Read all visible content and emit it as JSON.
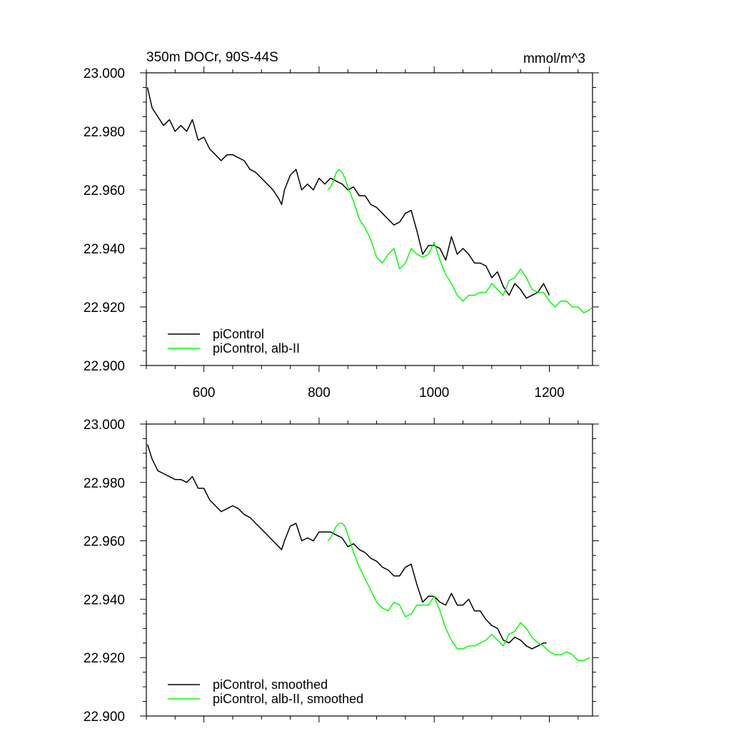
{
  "figure": {
    "title": "350m DOCr, 90S-44S",
    "units": "mmol/m^3"
  },
  "chart_data": [
    {
      "type": "line",
      "title": "350m DOCr, 90S-44S",
      "units": "mmol/m^3",
      "xlim": [
        500,
        1275
      ],
      "ylim": [
        22.9,
        23.0
      ],
      "x_ticks": [
        600,
        800,
        1000,
        1200
      ],
      "x_tick_labels": [
        "600",
        "800",
        "1000",
        "1200"
      ],
      "y_ticks": [
        22.9,
        22.92,
        22.94,
        22.96,
        22.98,
        23.0
      ],
      "y_tick_labels": [
        "22.900",
        "22.920",
        "22.940",
        "22.960",
        "22.980",
        "23.000"
      ],
      "legend_position": "bottom-left",
      "series": [
        {
          "name": "piControl",
          "color": "#000000",
          "x": [
            502,
            510,
            520,
            530,
            540,
            550,
            560,
            570,
            580,
            590,
            600,
            610,
            620,
            630,
            640,
            650,
            660,
            670,
            680,
            690,
            700,
            710,
            720,
            730,
            735,
            740,
            750,
            760,
            770,
            780,
            790,
            800,
            810,
            820,
            830,
            840,
            850,
            860,
            870,
            880,
            890,
            900,
            910,
            920,
            930,
            940,
            950,
            960,
            970,
            980,
            990,
            1000,
            1010,
            1020,
            1030,
            1040,
            1050,
            1060,
            1070,
            1080,
            1090,
            1100,
            1110,
            1120,
            1130,
            1140,
            1150,
            1160,
            1170,
            1180,
            1190,
            1200
          ],
          "y": [
            22.995,
            22.988,
            22.985,
            22.982,
            22.984,
            22.98,
            22.982,
            22.98,
            22.984,
            22.977,
            22.978,
            22.974,
            22.972,
            22.97,
            22.972,
            22.972,
            22.971,
            22.97,
            22.967,
            22.966,
            22.964,
            22.962,
            22.96,
            22.957,
            22.955,
            22.96,
            22.965,
            22.967,
            22.96,
            22.962,
            22.96,
            22.964,
            22.962,
            22.964,
            22.963,
            22.962,
            22.96,
            22.961,
            22.958,
            22.958,
            22.955,
            22.954,
            22.952,
            22.95,
            22.948,
            22.949,
            22.952,
            22.953,
            22.946,
            22.938,
            22.941,
            22.941,
            22.94,
            22.936,
            22.944,
            22.938,
            22.94,
            22.938,
            22.935,
            22.935,
            22.934,
            22.93,
            22.932,
            22.927,
            22.924,
            22.928,
            22.926,
            22.923,
            22.924,
            22.925,
            22.928,
            22.924
          ]
        },
        {
          "name": "piControl, alb-II",
          "color": "#00ff00",
          "x": [
            815,
            820,
            825,
            830,
            835,
            840,
            845,
            850,
            860,
            870,
            880,
            890,
            900,
            910,
            920,
            930,
            940,
            950,
            960,
            970,
            980,
            990,
            1000,
            1010,
            1020,
            1030,
            1040,
            1050,
            1060,
            1070,
            1080,
            1090,
            1100,
            1110,
            1120,
            1130,
            1140,
            1150,
            1160,
            1170,
            1180,
            1190,
            1200,
            1210,
            1220,
            1230,
            1240,
            1250,
            1260,
            1270,
            1275
          ],
          "y": [
            22.96,
            22.961,
            22.963,
            22.966,
            22.967,
            22.966,
            22.964,
            22.961,
            22.956,
            22.95,
            22.947,
            22.943,
            22.937,
            22.935,
            22.938,
            22.94,
            22.933,
            22.935,
            22.94,
            22.938,
            22.937,
            22.938,
            22.942,
            22.936,
            22.931,
            22.928,
            22.924,
            22.922,
            22.924,
            22.924,
            22.925,
            22.925,
            22.928,
            22.926,
            22.924,
            22.929,
            22.93,
            22.933,
            22.93,
            22.926,
            22.925,
            22.925,
            22.922,
            22.92,
            22.922,
            22.922,
            22.92,
            22.92,
            22.918,
            22.919,
            22.92
          ]
        }
      ]
    },
    {
      "type": "line",
      "title": "",
      "xlim": [
        500,
        1275
      ],
      "ylim": [
        22.9,
        23.0
      ],
      "x_ticks": [
        600,
        800,
        1000,
        1200
      ],
      "y_ticks": [
        22.9,
        22.92,
        22.94,
        22.96,
        22.98,
        23.0
      ],
      "y_tick_labels": [
        "22.900",
        "22.920",
        "22.940",
        "22.960",
        "22.980",
        "23.000"
      ],
      "legend_position": "bottom-left",
      "series": [
        {
          "name": "piControl, smoothed",
          "color": "#000000",
          "x": [
            502,
            510,
            520,
            530,
            540,
            550,
            560,
            570,
            580,
            590,
            600,
            610,
            620,
            630,
            640,
            650,
            660,
            670,
            680,
            690,
            700,
            710,
            720,
            730,
            735,
            740,
            750,
            760,
            770,
            780,
            790,
            800,
            810,
            820,
            830,
            840,
            850,
            860,
            870,
            880,
            890,
            900,
            910,
            920,
            930,
            940,
            950,
            960,
            970,
            980,
            990,
            1000,
            1010,
            1020,
            1030,
            1040,
            1050,
            1060,
            1070,
            1080,
            1090,
            1100,
            1110,
            1120,
            1130,
            1140,
            1150,
            1160,
            1170,
            1180,
            1190,
            1195
          ],
          "y": [
            22.993,
            22.988,
            22.984,
            22.983,
            22.982,
            22.981,
            22.981,
            22.98,
            22.982,
            22.978,
            22.978,
            22.974,
            22.972,
            22.97,
            22.971,
            22.972,
            22.971,
            22.969,
            22.968,
            22.966,
            22.964,
            22.962,
            22.96,
            22.958,
            22.957,
            22.96,
            22.965,
            22.966,
            22.96,
            22.961,
            22.96,
            22.963,
            22.963,
            22.963,
            22.962,
            22.961,
            22.958,
            22.959,
            22.957,
            22.956,
            22.954,
            22.953,
            22.951,
            22.95,
            22.948,
            22.948,
            22.951,
            22.952,
            22.945,
            22.939,
            22.941,
            22.941,
            22.939,
            22.938,
            22.942,
            22.938,
            22.938,
            22.94,
            22.936,
            22.936,
            22.933,
            22.931,
            22.93,
            22.926,
            22.925,
            22.927,
            22.926,
            22.924,
            22.923,
            22.924,
            22.925,
            22.925
          ]
        },
        {
          "name": "piControl, alb-II, smoothed",
          "color": "#00ff00",
          "x": [
            815,
            820,
            825,
            830,
            835,
            840,
            845,
            850,
            860,
            870,
            880,
            890,
            900,
            910,
            920,
            930,
            940,
            950,
            960,
            970,
            980,
            990,
            1000,
            1010,
            1020,
            1030,
            1040,
            1050,
            1060,
            1070,
            1080,
            1090,
            1100,
            1110,
            1120,
            1130,
            1140,
            1150,
            1160,
            1170,
            1180,
            1190,
            1200,
            1210,
            1220,
            1230,
            1240,
            1250,
            1260,
            1270
          ],
          "y": [
            22.96,
            22.961,
            22.963,
            22.965,
            22.966,
            22.966,
            22.965,
            22.962,
            22.956,
            22.951,
            22.947,
            22.943,
            22.939,
            22.937,
            22.936,
            22.939,
            22.938,
            22.934,
            22.935,
            22.938,
            22.938,
            22.938,
            22.941,
            22.936,
            22.93,
            22.926,
            22.923,
            22.923,
            22.924,
            22.924,
            22.925,
            22.926,
            22.928,
            22.926,
            22.924,
            22.928,
            22.929,
            22.932,
            22.93,
            22.927,
            22.925,
            22.924,
            22.922,
            22.921,
            22.921,
            22.922,
            22.921,
            22.919,
            22.919,
            22.92
          ]
        }
      ]
    }
  ]
}
